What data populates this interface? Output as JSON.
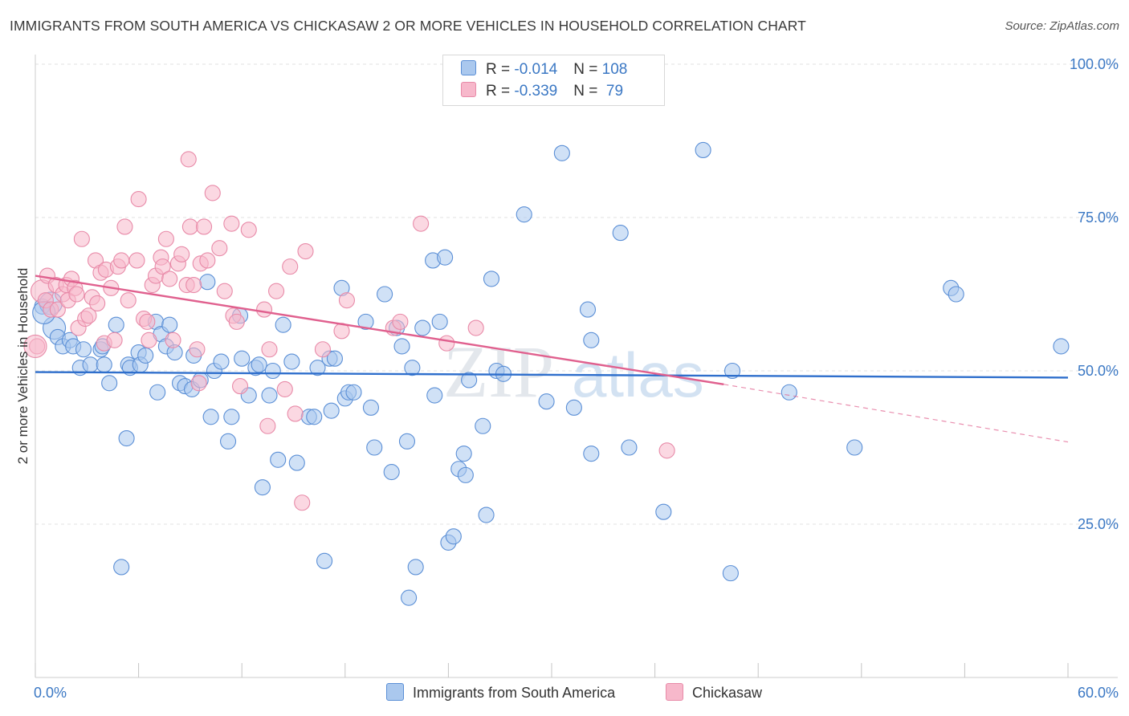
{
  "header": {
    "title": "IMMIGRANTS FROM SOUTH AMERICA VS CHICKASAW 2 OR MORE VEHICLES IN HOUSEHOLD CORRELATION CHART",
    "source": "Source: ZipAtlas.com"
  },
  "watermark": {
    "zip": "ZIP",
    "atlas": "atlas"
  },
  "legend_top": {
    "rows": [
      {
        "r_label": "R = ",
        "r_value": "-0.014",
        "n_label": "N = ",
        "n_value": "108",
        "color": "#aac8ee"
      },
      {
        "r_label": "R = ",
        "r_value": "-0.339",
        "n_label": "N = ",
        "n_value": " 79",
        "color": "#f7b8cb"
      }
    ]
  },
  "legend_bottom": {
    "items": [
      {
        "label": "Immigrants from South America",
        "color": "#aac8ee"
      },
      {
        "label": "Chickasaw",
        "color": "#f7b8cb"
      }
    ]
  },
  "chart_data": {
    "type": "scatter",
    "xlabel": "",
    "ylabel": "2 or more Vehicles in Household",
    "xlim": [
      0,
      60
    ],
    "ylim": [
      0,
      105
    ],
    "x_tick_labels": [
      "0.0%",
      "60.0%"
    ],
    "y_ticks": [
      25,
      50,
      75,
      100
    ],
    "y_tick_labels": [
      "25.0%",
      "50.0%",
      "75.0%",
      "100.0%"
    ],
    "grid": true,
    "legend_position": "top-center",
    "series": [
      {
        "name": "Immigrants from South America",
        "color": "#5b8fd6",
        "fill": "#aac8ee",
        "trend": {
          "x": [
            0,
            60
          ],
          "y": [
            49.8,
            48.9
          ],
          "color": "#2f6fcc"
        },
        "points": [
          [
            0.4,
            60.5
          ],
          [
            0.9,
            61
          ],
          [
            1.1,
            57
          ],
          [
            1.3,
            55.5
          ],
          [
            1.6,
            54
          ],
          [
            2.0,
            55
          ],
          [
            2.2,
            54
          ],
          [
            2.6,
            50.5
          ],
          [
            2.8,
            53.5
          ],
          [
            3.2,
            51
          ],
          [
            3.8,
            53.5
          ],
          [
            3.9,
            54
          ],
          [
            4.0,
            51
          ],
          [
            4.3,
            48
          ],
          [
            4.7,
            57.5
          ],
          [
            5.0,
            18
          ],
          [
            5.3,
            39
          ],
          [
            5.4,
            51
          ],
          [
            5.5,
            50.5
          ],
          [
            6.0,
            53
          ],
          [
            6.1,
            51
          ],
          [
            6.4,
            52.5
          ],
          [
            7.0,
            58
          ],
          [
            7.1,
            46.5
          ],
          [
            7.3,
            56
          ],
          [
            7.6,
            54
          ],
          [
            7.8,
            57.5
          ],
          [
            8.1,
            53
          ],
          [
            8.4,
            48
          ],
          [
            8.7,
            47.5
          ],
          [
            9.1,
            47
          ],
          [
            9.2,
            52.5
          ],
          [
            9.6,
            48.5
          ],
          [
            10.0,
            64.5
          ],
          [
            10.2,
            42.5
          ],
          [
            10.4,
            50
          ],
          [
            10.8,
            51.5
          ],
          [
            11.2,
            38.5
          ],
          [
            11.4,
            42.5
          ],
          [
            11.9,
            59
          ],
          [
            12.0,
            52
          ],
          [
            12.4,
            46
          ],
          [
            12.8,
            50.5
          ],
          [
            13.0,
            51
          ],
          [
            13.2,
            31
          ],
          [
            13.6,
            46
          ],
          [
            13.8,
            50
          ],
          [
            14.1,
            35.5
          ],
          [
            14.4,
            57.5
          ],
          [
            14.9,
            51.5
          ],
          [
            15.2,
            35
          ],
          [
            15.9,
            42.5
          ],
          [
            16.2,
            42.5
          ],
          [
            16.4,
            50.5
          ],
          [
            16.8,
            19
          ],
          [
            17.1,
            52
          ],
          [
            17.4,
            52
          ],
          [
            17.8,
            63.5
          ],
          [
            18.0,
            45.5
          ],
          [
            18.2,
            46.5
          ],
          [
            18.5,
            46.5
          ],
          [
            19.2,
            58
          ],
          [
            19.5,
            44
          ],
          [
            19.7,
            37.5
          ],
          [
            20.3,
            62.5
          ],
          [
            20.7,
            33.5
          ],
          [
            21.0,
            57
          ],
          [
            21.3,
            54
          ],
          [
            21.6,
            38.5
          ],
          [
            21.7,
            13
          ],
          [
            21.9,
            50.5
          ],
          [
            22.1,
            18
          ],
          [
            22.5,
            57
          ],
          [
            23.1,
            68
          ],
          [
            23.2,
            46
          ],
          [
            23.5,
            58
          ],
          [
            23.8,
            68.5
          ],
          [
            24.0,
            22
          ],
          [
            24.3,
            23
          ],
          [
            24.6,
            34
          ],
          [
            24.9,
            36.5
          ],
          [
            25.0,
            33
          ],
          [
            25.2,
            48.5
          ],
          [
            26.0,
            41
          ],
          [
            26.2,
            26.5
          ],
          [
            26.5,
            65
          ],
          [
            26.8,
            50
          ],
          [
            27.2,
            49.5
          ],
          [
            28.4,
            75.5
          ],
          [
            29.7,
            45
          ],
          [
            30.6,
            85.5
          ],
          [
            31.3,
            44
          ],
          [
            32.1,
            60
          ],
          [
            32.3,
            55
          ],
          [
            34.0,
            72.5
          ],
          [
            34.5,
            37.5
          ],
          [
            36.5,
            27
          ],
          [
            38.8,
            86
          ],
          [
            40.4,
            17
          ],
          [
            40.5,
            50
          ],
          [
            43.8,
            46.5
          ],
          [
            47.6,
            37.5
          ],
          [
            53.2,
            63.5
          ],
          [
            53.5,
            62.5
          ],
          [
            59.6,
            54
          ],
          [
            32.3,
            36.5
          ],
          [
            17.2,
            43.5
          ],
          [
            0.5,
            59.5
          ]
        ]
      },
      {
        "name": "Chickasaw",
        "color": "#e88aa8",
        "fill": "#f7b8cb",
        "trend": {
          "x": [
            0,
            40
          ],
          "y": [
            65.5,
            47.8
          ],
          "color": "#e0608e"
        },
        "trend_ext": {
          "x": [
            40,
            60
          ],
          "y": [
            47.8,
            38.4
          ]
        },
        "points": [
          [
            0.1,
            54
          ],
          [
            0.4,
            63
          ],
          [
            0.6,
            61.5
          ],
          [
            0.7,
            65.5
          ],
          [
            0.9,
            60
          ],
          [
            1.2,
            64
          ],
          [
            1.3,
            60
          ],
          [
            1.6,
            62.5
          ],
          [
            1.8,
            64
          ],
          [
            1.9,
            61.5
          ],
          [
            2.1,
            65
          ],
          [
            2.3,
            63.5
          ],
          [
            2.4,
            62.5
          ],
          [
            2.5,
            57
          ],
          [
            2.7,
            71.5
          ],
          [
            2.9,
            58.5
          ],
          [
            3.1,
            59
          ],
          [
            3.3,
            62
          ],
          [
            3.5,
            68
          ],
          [
            3.6,
            61
          ],
          [
            3.8,
            66
          ],
          [
            4.0,
            54.5
          ],
          [
            4.1,
            66.5
          ],
          [
            4.4,
            63.5
          ],
          [
            4.6,
            55
          ],
          [
            4.8,
            67
          ],
          [
            5.0,
            68
          ],
          [
            5.2,
            73.5
          ],
          [
            5.4,
            61.5
          ],
          [
            5.9,
            68
          ],
          [
            6.0,
            78
          ],
          [
            6.3,
            58.5
          ],
          [
            6.5,
            58
          ],
          [
            6.6,
            55
          ],
          [
            6.8,
            64
          ],
          [
            7.0,
            65.5
          ],
          [
            7.3,
            68.5
          ],
          [
            7.4,
            67
          ],
          [
            7.6,
            71.5
          ],
          [
            7.8,
            65
          ],
          [
            8.0,
            55
          ],
          [
            8.3,
            67.5
          ],
          [
            8.5,
            69
          ],
          [
            8.8,
            64
          ],
          [
            8.9,
            84.5
          ],
          [
            9.0,
            73.5
          ],
          [
            9.2,
            64
          ],
          [
            9.4,
            53.5
          ],
          [
            9.5,
            48
          ],
          [
            9.6,
            67.5
          ],
          [
            9.8,
            73.5
          ],
          [
            10.0,
            68
          ],
          [
            10.3,
            79
          ],
          [
            10.7,
            70
          ],
          [
            11.0,
            63
          ],
          [
            11.4,
            74
          ],
          [
            11.5,
            59
          ],
          [
            11.7,
            58
          ],
          [
            11.9,
            47.5
          ],
          [
            12.4,
            73
          ],
          [
            13.3,
            60
          ],
          [
            13.5,
            41
          ],
          [
            13.6,
            53.5
          ],
          [
            14.0,
            63
          ],
          [
            14.5,
            47
          ],
          [
            14.8,
            67
          ],
          [
            15.1,
            43
          ],
          [
            15.5,
            28.5
          ],
          [
            15.7,
            69.5
          ],
          [
            16.7,
            53.5
          ],
          [
            17.8,
            56.5
          ],
          [
            18.1,
            61.5
          ],
          [
            20.8,
            57
          ],
          [
            21.2,
            58
          ],
          [
            22.4,
            74
          ],
          [
            23.9,
            54.5
          ],
          [
            25.6,
            57
          ],
          [
            36.7,
            37
          ],
          [
            0.0,
            54
          ]
        ]
      }
    ]
  }
}
